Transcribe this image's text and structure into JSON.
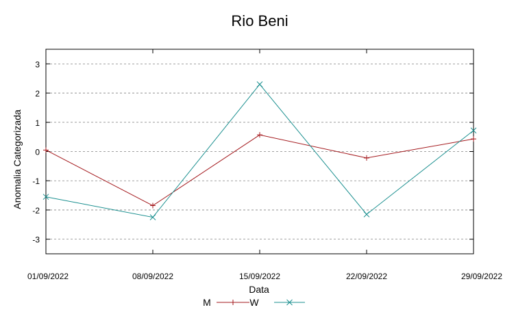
{
  "chart_data": {
    "type": "line",
    "title": "Rio Beni",
    "xlabel": "Data",
    "ylabel": "Anomalia Categorizada",
    "categories": [
      "01/09/2022",
      "08/09/2022",
      "15/09/2022",
      "22/09/2022",
      "29/09/2022"
    ],
    "ylim": [
      -3.5,
      3.5
    ],
    "yticks": [
      "3",
      "2",
      "1",
      "0",
      "-1",
      "-2",
      "-3"
    ],
    "grid": true,
    "legend_position": "bottom",
    "series": [
      {
        "name": "M",
        "color": "#a3171b",
        "marker": "plus",
        "values": [
          0.05,
          -1.85,
          0.57,
          -0.22,
          0.43
        ]
      },
      {
        "name": "W",
        "color": "#1a8f8f",
        "marker": "cross",
        "values": [
          -1.55,
          -2.25,
          2.3,
          -2.15,
          0.72
        ]
      }
    ]
  }
}
